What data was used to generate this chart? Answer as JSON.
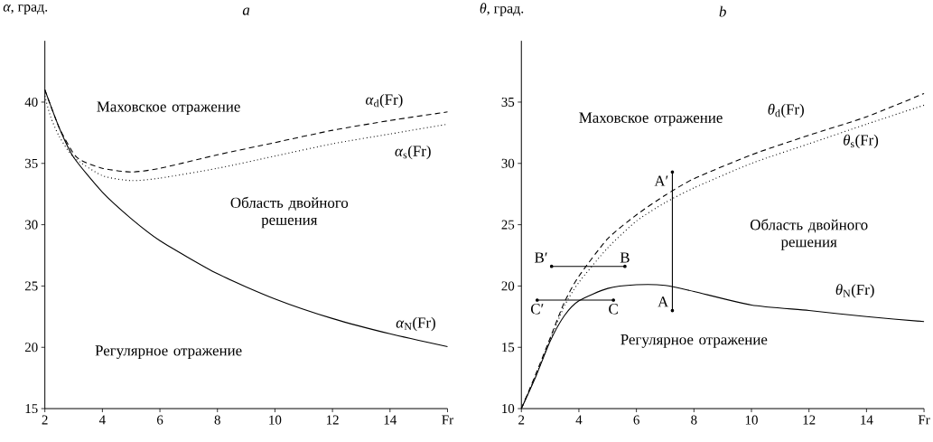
{
  "chart_data": [
    {
      "type": "line",
      "title": "*a*",
      "ylabel": "*α*, град.",
      "xlim": [
        2,
        16
      ],
      "xticks": [
        2,
        4,
        6,
        8,
        10,
        12,
        14,
        {
          "value": 16,
          "label": "Fr"
        }
      ],
      "ylim": [
        15,
        45
      ],
      "yticks": [
        15,
        20,
        25,
        30,
        35,
        40
      ],
      "series": [
        {
          "name": "*α*$_{d}$(Fr)",
          "color": "#000000",
          "line_style": "dashed",
          "x": [
            2,
            2.5,
            3,
            3.3,
            4,
            5,
            6,
            8,
            10,
            12,
            14,
            16
          ],
          "values": [
            41,
            37.9,
            35.8,
            35.2,
            34.6,
            34.3,
            34.6,
            35.7,
            36.7,
            37.7,
            38.5,
            39.2
          ]
        },
        {
          "name": "*α*$_{s}$(Fr)",
          "color": "#000000",
          "line_style": "dotted",
          "x": [
            2,
            2.2,
            2.5,
            3,
            4,
            5,
            6,
            8,
            10,
            12,
            14,
            16
          ],
          "values": [
            40.5,
            38.8,
            37.2,
            35.5,
            34.0,
            33.6,
            33.8,
            34.6,
            35.6,
            36.6,
            37.4,
            38.2
          ]
        },
        {
          "name": "*α*$_{N}$(Fr)",
          "color": "#000000",
          "line_style": "solid",
          "x": [
            2,
            2.5,
            3,
            4,
            5,
            6,
            8,
            10,
            12,
            14,
            16
          ],
          "values": [
            41,
            37.9,
            35.5,
            32.65,
            30.5,
            28.7,
            26.0,
            23.95,
            22.35,
            21.1,
            20.05
          ]
        }
      ],
      "annotations": [
        "Маховское отражение",
        "Область двойного решения",
        "Регулярное отражение"
      ]
    },
    {
      "type": "line",
      "title": "*b*",
      "ylabel": "*θ*, град.",
      "xlim": [
        2,
        16
      ],
      "xticks": [
        2,
        4,
        6,
        8,
        10,
        12,
        14,
        {
          "value": 16,
          "label": "Fr"
        }
      ],
      "ylim": [
        10,
        40
      ],
      "yticks": [
        10,
        15,
        20,
        25,
        30,
        35
      ],
      "series": [
        {
          "name": "*θ*$_{d}$(Fr)",
          "color": "#000000",
          "line_style": "dashed",
          "x": [
            2,
            2.5,
            3,
            3.5,
            4,
            5,
            6,
            7,
            8,
            10,
            12,
            14,
            16
          ],
          "values": [
            10,
            12.8,
            15.75,
            18.7,
            20.8,
            23.85,
            25.8,
            27.4,
            28.75,
            30.7,
            32.3,
            33.8,
            35.7
          ]
        },
        {
          "name": "*θ*$_{s}$(Fr)",
          "color": "#000000",
          "line_style": "dotted",
          "x": [
            2,
            2.5,
            3,
            3.5,
            4,
            5,
            6,
            7,
            8,
            10,
            12,
            14,
            16
          ],
          "values": [
            10,
            12.7,
            15.6,
            18.4,
            20.3,
            23.1,
            25.3,
            26.8,
            28.0,
            30.0,
            31.6,
            33.2,
            34.75
          ]
        },
        {
          "name": "*θ*$_{N}$(Fr)",
          "color": "#000000",
          "line_style": "solid",
          "x": [
            2,
            2.5,
            3,
            3.5,
            4,
            5,
            6,
            7,
            8,
            10,
            12,
            14,
            16
          ],
          "values": [
            10,
            12.6,
            15.5,
            17.6,
            18.8,
            19.8,
            20.1,
            20.05,
            19.55,
            18.45,
            18.0,
            17.5,
            17.1
          ]
        },
        {
          "color": "#000000",
          "line_style": "solid",
          "marker": "circle",
          "x": [
            7.25,
            7.25
          ],
          "values": [
            18,
            29.3
          ]
        },
        {
          "color": "#000000",
          "line_style": "solid",
          "marker": "circle",
          "x": [
            3.05,
            5.6
          ],
          "values": [
            21.6,
            21.6
          ]
        },
        {
          "color": "#000000",
          "line_style": "solid",
          "marker": "circle",
          "x": [
            2.55,
            5.2
          ],
          "values": [
            18.85,
            18.85
          ]
        }
      ],
      "annotations": [
        "Маховское отражение",
        "Область двойного решения",
        "Регулярное отражение",
        {
          "text": "A",
          "x": 7.25,
          "y": 18
        },
        {
          "text": "A′",
          "x": 7.25,
          "y": 29.3
        },
        {
          "text": "B′",
          "x": 3.05,
          "y": 21.6
        },
        {
          "text": "B",
          "x": 5.6,
          "y": 21.6
        },
        {
          "text": "C′",
          "x": 2.55,
          "y": 18.85
        },
        {
          "text": "C",
          "x": 5.2,
          "y": 18.85
        }
      ]
    }
  ]
}
